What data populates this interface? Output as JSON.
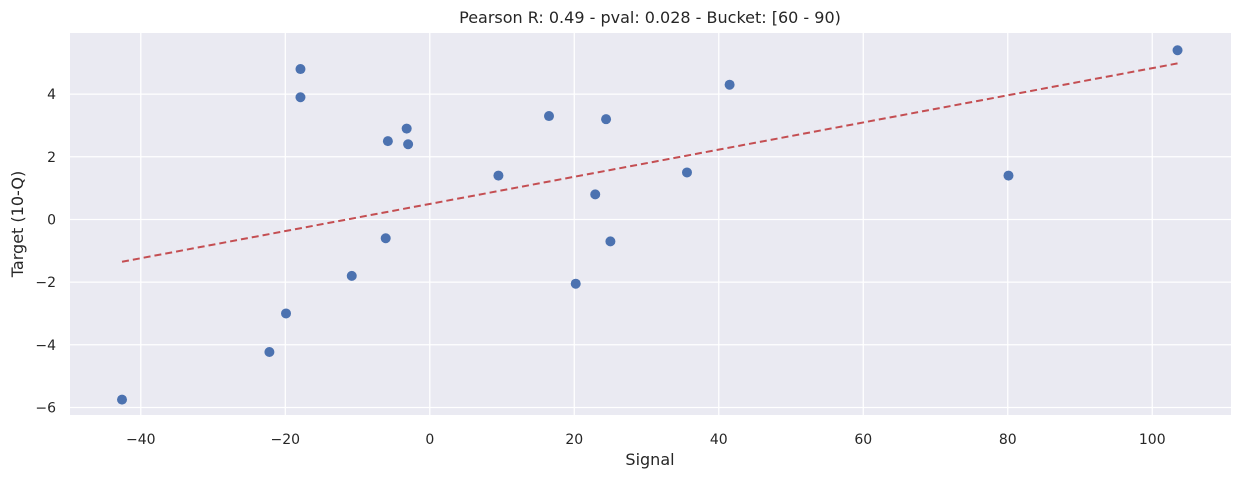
{
  "chart_data": {
    "type": "scatter",
    "title": "Pearson R: 0.49 - pval: 0.028 - Bucket: [60 - 90)",
    "xlabel": "Signal",
    "ylabel": "Target (10-Q)",
    "xlim": [
      -49.8,
      110.9
    ],
    "ylim": [
      -6.24,
      5.95
    ],
    "xticks": [
      -40,
      -20,
      0,
      20,
      40,
      60,
      80,
      100
    ],
    "xtick_labels": [
      "−40",
      "−20",
      "0",
      "20",
      "40",
      "60",
      "80",
      "100"
    ],
    "yticks": [
      -6,
      -4,
      -2,
      0,
      2,
      4
    ],
    "ytick_labels": [
      "−6",
      "−4",
      "−2",
      "0",
      "2",
      "4"
    ],
    "grid": true,
    "legend": null,
    "series": [
      {
        "name": "points",
        "kind": "scatter",
        "color": "#4C72B0",
        "points": [
          {
            "x": -42.6,
            "y": -5.75
          },
          {
            "x": -22.2,
            "y": -4.23
          },
          {
            "x": -19.9,
            "y": -3.0
          },
          {
            "x": -17.9,
            "y": 4.8
          },
          {
            "x": -17.9,
            "y": 3.9
          },
          {
            "x": -10.8,
            "y": -1.8
          },
          {
            "x": -6.1,
            "y": -0.6
          },
          {
            "x": -5.8,
            "y": 2.5
          },
          {
            "x": -3.2,
            "y": 2.9
          },
          {
            "x": -3.0,
            "y": 2.4
          },
          {
            "x": 9.5,
            "y": 1.4
          },
          {
            "x": 16.5,
            "y": 3.3
          },
          {
            "x": 20.2,
            "y": -2.05
          },
          {
            "x": 22.9,
            "y": 0.8
          },
          {
            "x": 24.4,
            "y": 3.2
          },
          {
            "x": 25.0,
            "y": -0.7
          },
          {
            "x": 35.6,
            "y": 1.5
          },
          {
            "x": 41.5,
            "y": 4.3
          },
          {
            "x": 80.1,
            "y": 1.4
          },
          {
            "x": 103.5,
            "y": 5.4
          }
        ]
      },
      {
        "name": "regression",
        "kind": "line",
        "style": "dashed",
        "color": "#C44E52",
        "points": [
          {
            "x": -42.6,
            "y": -1.35
          },
          {
            "x": 103.5,
            "y": 4.98
          }
        ]
      }
    ]
  },
  "style": {
    "plot_background": "#EAEAF2",
    "grid_color": "#FFFFFF"
  }
}
